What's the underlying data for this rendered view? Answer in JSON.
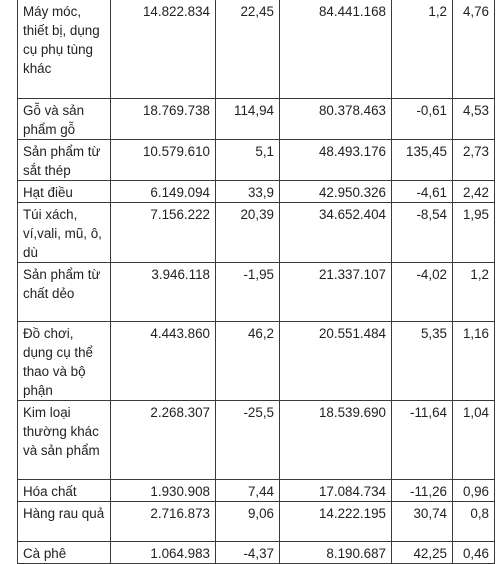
{
  "table": {
    "rows": [
      {
        "name": "Máy móc, thiết bị, dụng cụ phụ tùng khác",
        "value_1": "14.822.834",
        "change_1": "22,45",
        "value_2": "84.441.168",
        "change_2": "1,2",
        "share": "4,76"
      },
      {
        "name": "Gỗ và sản phẩm gỗ",
        "value_1": "18.769.738",
        "change_1": "114,94",
        "value_2": "80.378.463",
        "change_2": "-0,61",
        "share": "4,53"
      },
      {
        "name": "Sản phẩm từ sắt thép",
        "value_1": "10.579.610",
        "change_1": "5,1",
        "value_2": "48.493.176",
        "change_2": "135,45",
        "share": "2,73"
      },
      {
        "name": "Hạt điều",
        "value_1": "6.149.094",
        "change_1": "33,9",
        "value_2": "42.950.326",
        "change_2": "-4,61",
        "share": "2,42"
      },
      {
        "name": "Túi xách, ví,vali, mũ, ô, dù",
        "value_1": "7.156.222",
        "change_1": "20,39",
        "value_2": "34.652.404",
        "change_2": "-8,54",
        "share": "1,95"
      },
      {
        "name": "Sản phẩm từ chất dẻo",
        "value_1": "3.946.118",
        "change_1": "-1,95",
        "value_2": "21.337.107",
        "change_2": "-4,02",
        "share": "1,2"
      },
      {
        "name": "Đồ chơi, dụng cụ thể thao và bộ phận",
        "value_1": "4.443.860",
        "change_1": "46,2",
        "value_2": "20.551.484",
        "change_2": "5,35",
        "share": "1,16"
      },
      {
        "name": "Kim loại thường khác và sản phẩm",
        "value_1": "2.268.307",
        "change_1": "-25,5",
        "value_2": "18.539.690",
        "change_2": "-11,64",
        "share": "1,04"
      },
      {
        "name": "Hóa chất",
        "value_1": "1.930.908",
        "change_1": "7,44",
        "value_2": "17.084.734",
        "change_2": "-11,26",
        "share": "0,96"
      },
      {
        "name": "Hàng rau quả",
        "value_1": "2.716.873",
        "change_1": "9,06",
        "value_2": "14.222.195",
        "change_2": "30,74",
        "share": "0,8"
      },
      {
        "name": "Cà phê",
        "value_1": "1.064.983",
        "change_1": "-4,37",
        "value_2": "8.190.687",
        "change_2": "42,25",
        "share": "0,46"
      }
    ]
  }
}
